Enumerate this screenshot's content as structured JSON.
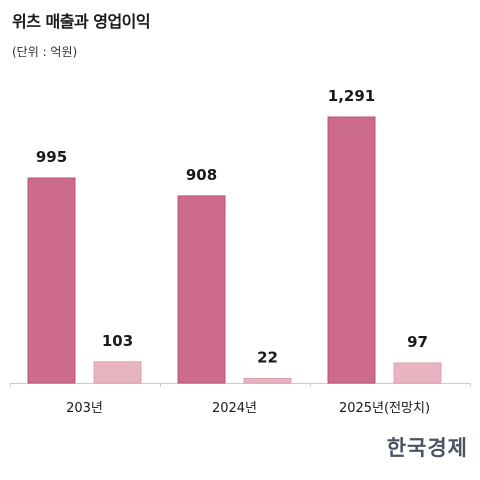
{
  "header": {
    "title": "위츠 매출과 영업이익",
    "unit": "(단위 : 억원)"
  },
  "logo_text": "한국경제",
  "colors": {
    "revenue": "#cc6b8e",
    "revenue_stroke": "#b8547a",
    "profit": "#e8b4c2",
    "profit_stroke": "#dca0b2",
    "axis": "#cccccc",
    "label": "#1a1a1a"
  },
  "chart_data": {
    "type": "bar",
    "title": "위츠 매출과 영업이익",
    "subtitle": "(단위 : 억원)",
    "xlabel": "",
    "ylabel": "",
    "categories": [
      "203년",
      "2024년",
      "2025년(전망치)"
    ],
    "series": [
      {
        "values": [
          995,
          908,
          1291
        ],
        "value_labels": [
          "995",
          "908",
          "1,291"
        ]
      },
      {
        "values": [
          103,
          22,
          97
        ],
        "value_labels": [
          "103",
          "22",
          "97"
        ]
      }
    ],
    "ylim": [
      0,
      1291
    ],
    "grid": false,
    "legend": "none"
  }
}
